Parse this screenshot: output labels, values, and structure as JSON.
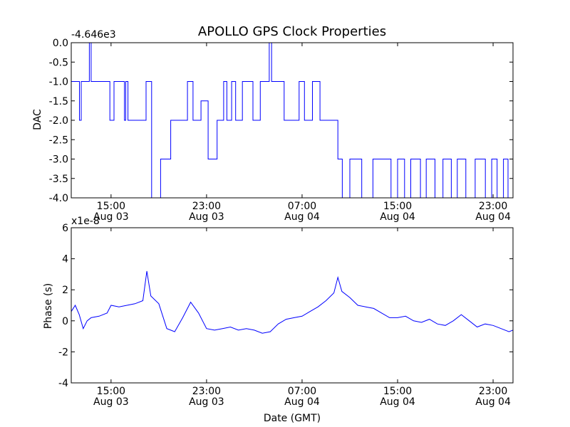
{
  "page": {
    "background": "#ffffff"
  },
  "figure": {
    "title": "APOLLO GPS Clock Properties"
  },
  "chart_data": [
    {
      "type": "line",
      "title": "APOLLO GPS Clock Properties",
      "xlabel": "",
      "ylabel": "DAC",
      "offset_text": "-4.646e3",
      "x_range": [
        "2012-08-03 11:40",
        "2012-08-05 00:40"
      ],
      "x_ticks": [
        "15:00",
        "23:00",
        "07:00",
        "15:00",
        "23:00"
      ],
      "x_tick_dates": [
        "Aug 03",
        "Aug 03",
        "Aug 04",
        "Aug 04",
        "Aug 04"
      ],
      "x_tick_values": [
        "2012-08-03 15:00",
        "2012-08-03 23:00",
        "2012-08-04 07:00",
        "2012-08-04 15:00",
        "2012-08-04 23:00"
      ],
      "ylim": [
        -4.0,
        0.0
      ],
      "y_ticks": [
        "-4.0",
        "-3.5",
        "-3.0",
        "-2.5",
        "-2.0",
        "-1.5",
        "-1.0",
        "-0.5",
        "0.0"
      ],
      "y_tick_values": [
        -4.0,
        -3.5,
        -3.0,
        -2.5,
        -2.0,
        -1.5,
        -1.0,
        -0.5,
        0.0
      ],
      "grid": false,
      "line_color": "#0000ff",
      "series": [
        {
          "x": [
            "2012-08-03 11:40",
            "2012-08-03 12:21",
            "2012-08-03 12:30",
            "2012-08-03 12:38",
            "2012-08-03 13:11",
            "2012-08-03 13:20",
            "2012-08-03 13:34",
            "2012-08-03 14:05",
            "2012-08-03 14:54",
            "2012-08-03 15:15",
            "2012-08-03 16:07",
            "2012-08-03 16:14",
            "2012-08-03 16:25",
            "2012-08-03 17:00",
            "2012-08-03 17:56",
            "2012-08-03 18:24",
            "2012-08-03 19:09",
            "2012-08-03 19:45",
            "2012-08-03 20:00",
            "2012-08-03 20:49",
            "2012-08-03 21:24",
            "2012-08-03 21:52",
            "2012-08-03 22:32",
            "2012-08-03 23:08",
            "2012-08-03 23:53",
            "2012-08-04 00:26",
            "2012-08-04 00:42",
            "2012-08-04 01:06",
            "2012-08-04 01:26",
            "2012-08-04 02:00",
            "2012-08-04 02:53",
            "2012-08-04 03:30",
            "2012-08-04 04:15",
            "2012-08-04 04:27",
            "2012-08-04 04:47",
            "2012-08-04 05:30",
            "2012-08-04 06:45",
            "2012-08-04 07:12",
            "2012-08-04 07:52",
            "2012-08-04 08:30",
            "2012-08-04 09:27",
            "2012-08-04 10:00",
            "2012-08-04 10:22",
            "2012-08-04 11:00",
            "2012-08-04 11:31",
            "2012-08-04 12:00",
            "2012-08-04 12:56",
            "2012-08-04 13:30",
            "2012-08-04 14:27",
            "2012-08-04 15:00",
            "2012-08-04 15:35",
            "2012-08-04 16:06",
            "2012-08-04 16:55",
            "2012-08-04 17:24",
            "2012-08-04 18:08",
            "2012-08-04 18:48",
            "2012-08-04 19:30",
            "2012-08-04 20:00",
            "2012-08-04 20:43",
            "2012-08-04 21:30",
            "2012-08-04 22:21",
            "2012-08-04 22:53",
            "2012-08-04 23:20",
            "2012-08-04 23:52",
            "2012-08-05 00:15",
            "2012-08-05 00:40"
          ],
          "y": [
            -1.0,
            -2.0,
            -1.0,
            -1.0,
            0.0,
            -1.0,
            -1.0,
            -1.0,
            -2.0,
            -1.0,
            -2.0,
            -1.0,
            -2.0,
            -2.0,
            -1.0,
            -4.0,
            -3.0,
            -3.0,
            -2.0,
            -2.0,
            -1.0,
            -2.0,
            -1.5,
            -3.0,
            -2.0,
            -1.0,
            -2.0,
            -1.0,
            -2.0,
            -1.0,
            -2.0,
            -1.0,
            0.0,
            -1.0,
            -1.0,
            -2.0,
            -1.0,
            -2.0,
            -1.0,
            -2.0,
            -2.0,
            -3.0,
            -4.0,
            -3.0,
            -3.0,
            -4.0,
            -3.0,
            -3.0,
            -4.0,
            -3.0,
            -4.0,
            -3.0,
            -4.0,
            -3.0,
            -4.0,
            -3.0,
            -4.0,
            -3.0,
            -4.0,
            -3.0,
            -4.0,
            -3.0,
            -4.0,
            -3.0,
            -4.0,
            -3.0
          ]
        }
      ]
    },
    {
      "type": "line",
      "title": "",
      "xlabel": "Date (GMT)",
      "ylabel": "Phase (s)",
      "offset_text": "x1e-8",
      "x_range": [
        "2012-08-03 11:40",
        "2012-08-05 00:40"
      ],
      "x_ticks": [
        "15:00",
        "23:00",
        "07:00",
        "15:00",
        "23:00"
      ],
      "x_tick_dates": [
        "Aug 03",
        "Aug 03",
        "Aug 04",
        "Aug 04",
        "Aug 04"
      ],
      "x_tick_values": [
        "2012-08-03 15:00",
        "2012-08-03 23:00",
        "2012-08-04 07:00",
        "2012-08-04 15:00",
        "2012-08-04 23:00"
      ],
      "ylim": [
        -4,
        6
      ],
      "y_ticks": [
        "-4",
        "-2",
        "0",
        "2",
        "4",
        "6"
      ],
      "y_tick_values": [
        -4,
        -2,
        0,
        2,
        4,
        6
      ],
      "grid": false,
      "line_color": "#0000ff",
      "series": [
        {
          "x": [
            "2012-08-03 11:40",
            "2012-08-03 12:00",
            "2012-08-03 12:20",
            "2012-08-03 12:40",
            "2012-08-03 13:00",
            "2012-08-03 13:20",
            "2012-08-03 14:00",
            "2012-08-03 14:40",
            "2012-08-03 15:00",
            "2012-08-03 15:40",
            "2012-08-03 16:20",
            "2012-08-03 17:00",
            "2012-08-03 17:40",
            "2012-08-03 18:00",
            "2012-08-03 18:20",
            "2012-08-03 19:00",
            "2012-08-03 19:40",
            "2012-08-03 20:00",
            "2012-08-03 20:20",
            "2012-08-03 21:00",
            "2012-08-03 21:40",
            "2012-08-03 22:20",
            "2012-08-03 23:00",
            "2012-08-03 23:40",
            "2012-08-04 00:20",
            "2012-08-04 01:00",
            "2012-08-04 01:40",
            "2012-08-04 02:20",
            "2012-08-04 03:00",
            "2012-08-04 03:40",
            "2012-08-04 04:20",
            "2012-08-04 05:00",
            "2012-08-04 05:40",
            "2012-08-04 06:20",
            "2012-08-04 07:00",
            "2012-08-04 07:40",
            "2012-08-04 08:20",
            "2012-08-04 09:00",
            "2012-08-04 09:40",
            "2012-08-04 10:00",
            "2012-08-04 10:20",
            "2012-08-04 11:00",
            "2012-08-04 11:40",
            "2012-08-04 12:20",
            "2012-08-04 13:00",
            "2012-08-04 13:40",
            "2012-08-04 14:20",
            "2012-08-04 15:00",
            "2012-08-04 15:40",
            "2012-08-04 16:20",
            "2012-08-04 17:00",
            "2012-08-04 17:40",
            "2012-08-04 18:20",
            "2012-08-04 19:00",
            "2012-08-04 19:40",
            "2012-08-04 20:20",
            "2012-08-04 21:00",
            "2012-08-04 21:40",
            "2012-08-04 22:20",
            "2012-08-04 23:00",
            "2012-08-04 23:40",
            "2012-08-05 00:20",
            "2012-08-05 00:40"
          ],
          "y": [
            0.6,
            1.0,
            0.4,
            -0.5,
            0.0,
            0.2,
            0.3,
            0.5,
            1.0,
            0.9,
            1.0,
            1.1,
            1.3,
            3.2,
            1.6,
            1.1,
            -0.5,
            -0.6,
            -0.7,
            0.2,
            1.2,
            0.5,
            -0.5,
            -0.6,
            -0.5,
            -0.4,
            -0.6,
            -0.5,
            -0.6,
            -0.8,
            -0.7,
            -0.2,
            0.1,
            0.2,
            0.3,
            0.6,
            0.9,
            1.3,
            1.8,
            2.8,
            1.9,
            1.5,
            1.0,
            0.9,
            0.8,
            0.5,
            0.2,
            0.2,
            0.3,
            0.0,
            -0.1,
            0.1,
            -0.2,
            -0.3,
            0.0,
            0.4,
            0.0,
            -0.4,
            -0.2,
            -0.3,
            -0.5,
            -0.7,
            -0.6
          ]
        }
      ]
    }
  ]
}
